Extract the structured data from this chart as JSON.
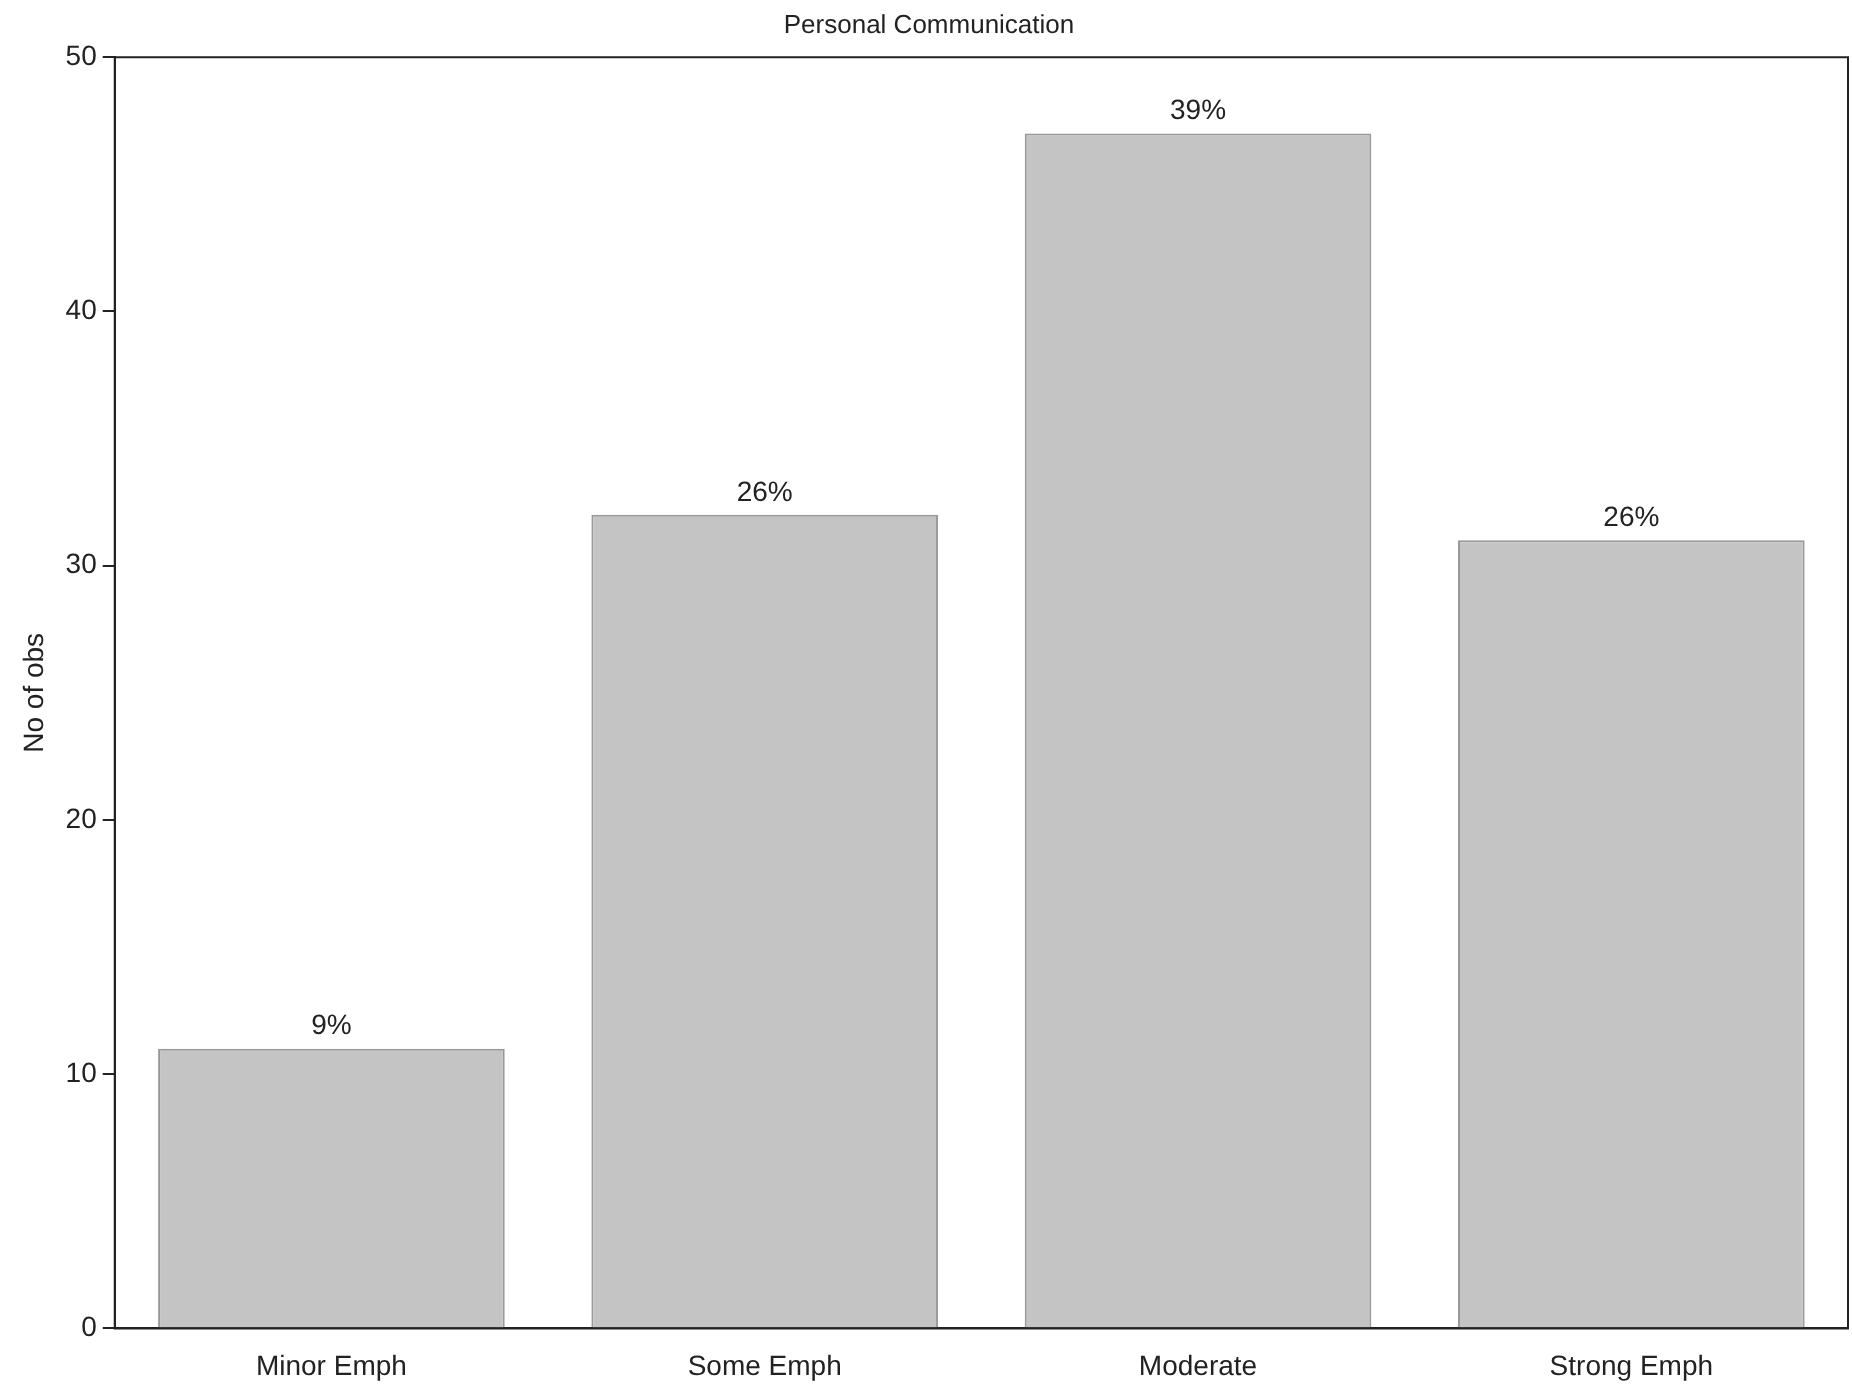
{
  "chart_data": {
    "type": "bar",
    "title": "Personal Communication",
    "ylabel": "No of obs",
    "categories": [
      "Minor Emph",
      "Some Emph",
      "Moderate",
      "Strong Emph"
    ],
    "values": [
      11,
      32,
      47,
      31
    ],
    "annotations": [
      {
        "text": "9%",
        "x": "Minor Emph",
        "y": 11
      },
      {
        "text": "26%",
        "x": "Some Emph",
        "y": 32
      },
      {
        "text": "39%",
        "x": "Moderate",
        "y": 47
      },
      {
        "text": "26%",
        "x": "Strong Emph",
        "y": 31
      }
    ],
    "color": "#c4c4c4",
    "ylim": [
      0,
      50
    ],
    "yticks": [
      0,
      10,
      20,
      30,
      40,
      50
    ],
    "grid": false,
    "legend": false
  }
}
